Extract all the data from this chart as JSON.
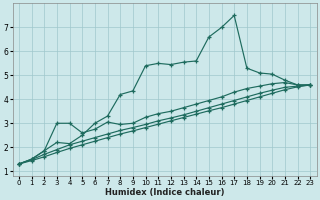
{
  "xlabel": "Humidex (Indice chaleur)",
  "bg_color": "#cde8ea",
  "grid_color": "#a0c8cc",
  "line_color": "#1e6b5e",
  "xlim": [
    -0.5,
    23.5
  ],
  "ylim": [
    0.8,
    8.0
  ],
  "xticks": [
    0,
    1,
    2,
    3,
    4,
    5,
    6,
    7,
    8,
    9,
    10,
    11,
    12,
    13,
    14,
    15,
    16,
    17,
    18,
    19,
    20,
    21,
    22,
    23
  ],
  "yticks": [
    1,
    2,
    3,
    4,
    5,
    6,
    7
  ],
  "line1_x": [
    0,
    1,
    2,
    3,
    4,
    5,
    6,
    7,
    8,
    9,
    10,
    11,
    12,
    13,
    14,
    15,
    16,
    17,
    18,
    19,
    20,
    21,
    22,
    23
  ],
  "line1_y": [
    1.3,
    1.5,
    1.85,
    2.2,
    2.15,
    2.5,
    3.0,
    3.3,
    4.2,
    4.35,
    5.4,
    5.5,
    5.45,
    5.55,
    5.6,
    6.6,
    7.0,
    7.5,
    5.3,
    5.1,
    5.05,
    4.8,
    4.6,
    4.6
  ],
  "line2_x": [
    0,
    1,
    2,
    3,
    4,
    5,
    6,
    7,
    8,
    9,
    10,
    11,
    12,
    13,
    14,
    15,
    16,
    17,
    18,
    19,
    20,
    21,
    22,
    23
  ],
  "line2_y": [
    1.3,
    1.5,
    1.85,
    3.0,
    3.0,
    2.6,
    2.75,
    3.05,
    2.95,
    3.0,
    3.25,
    3.4,
    3.5,
    3.65,
    3.8,
    3.95,
    4.1,
    4.3,
    4.45,
    4.55,
    4.65,
    4.7,
    4.6,
    4.6
  ],
  "line3_x": [
    0,
    1,
    2,
    3,
    4,
    5,
    6,
    7,
    8,
    9,
    10,
    11,
    12,
    13,
    14,
    15,
    16,
    17,
    18,
    19,
    20,
    21,
    22,
    23
  ],
  "line3_y": [
    1.3,
    1.48,
    1.7,
    1.9,
    2.1,
    2.25,
    2.4,
    2.55,
    2.7,
    2.82,
    2.95,
    3.1,
    3.22,
    3.35,
    3.5,
    3.65,
    3.8,
    3.95,
    4.1,
    4.25,
    4.38,
    4.5,
    4.55,
    4.6
  ],
  "line4_x": [
    0,
    1,
    2,
    3,
    4,
    5,
    6,
    7,
    8,
    9,
    10,
    11,
    12,
    13,
    14,
    15,
    16,
    17,
    18,
    19,
    20,
    21,
    22,
    23
  ],
  "line4_y": [
    1.3,
    1.44,
    1.6,
    1.78,
    1.95,
    2.1,
    2.25,
    2.4,
    2.55,
    2.68,
    2.82,
    2.96,
    3.1,
    3.24,
    3.38,
    3.52,
    3.65,
    3.8,
    3.95,
    4.1,
    4.25,
    4.4,
    4.52,
    4.6
  ]
}
